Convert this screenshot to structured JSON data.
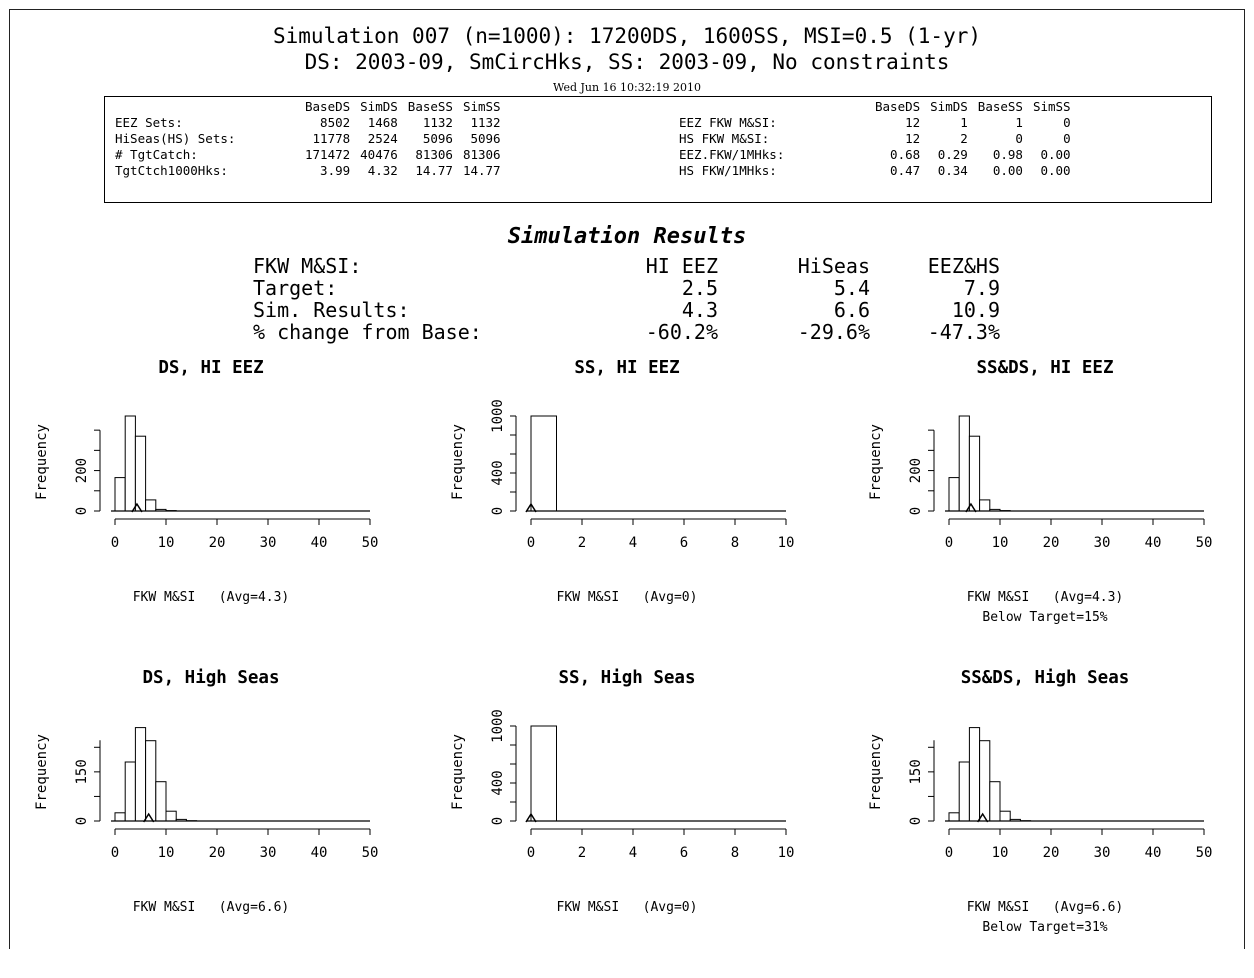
{
  "header": {
    "title": "Simulation 007 (n=1000): 17200DS, 1600SS, MSI=0.5 (1-yr)",
    "subtitle": "DS: 2003-09, SmCircHks,  SS: 2003-09, No constraints",
    "timestamp": "Wed Jun 16 10:32:19 2010"
  },
  "stats_table": {
    "left_columns": [
      "",
      "BaseDS",
      "SimDS",
      "BaseSS",
      "SimSS"
    ],
    "left_rows": [
      [
        "EEZ Sets:",
        "8502",
        "1468",
        "1132",
        "1132"
      ],
      [
        "HiSeas(HS) Sets:",
        "11778",
        "2524",
        "5096",
        "5096"
      ],
      [
        "# TgtCatch:",
        "171472",
        "40476",
        "81306",
        "81306"
      ],
      [
        "TgtCtch1000Hks:",
        "3.99",
        "4.32",
        "14.77",
        "14.77"
      ]
    ],
    "right_columns": [
      "",
      "BaseDS",
      "SimDS",
      "BaseSS",
      "SimSS"
    ],
    "right_rows": [
      [
        "EEZ FKW M&SI:",
        "12",
        "1",
        "1",
        "0"
      ],
      [
        "HS FKW M&SI:",
        "12",
        "2",
        "0",
        "0"
      ],
      [
        "EEZ.FKW/1MHks:",
        "0.68",
        "0.29",
        "0.98",
        "0.00"
      ],
      [
        "HS FKW/1MHks:",
        "0.47",
        "0.34",
        "0.00",
        "0.00"
      ]
    ]
  },
  "results": {
    "heading": "Simulation Results",
    "columns": [
      "HI EEZ",
      "HiSeas",
      "EEZ&HS"
    ],
    "rows": [
      {
        "label": "FKW M&SI:",
        "values": [
          "HI EEZ",
          "HiSeas",
          "EEZ&HS"
        ]
      },
      {
        "label": "Target:",
        "values": [
          "2.5",
          "5.4",
          "7.9"
        ]
      },
      {
        "label": "Sim. Results:",
        "values": [
          "4.3",
          "6.6",
          "10.9"
        ]
      },
      {
        "label": "% change from Base:",
        "values": [
          "-60.2%",
          "-29.6%",
          "-47.3%"
        ]
      }
    ]
  },
  "chart_data": [
    {
      "type": "bar",
      "title": "DS, HI EEZ",
      "xlabel": "FKW M&SI   (Avg=4.3)",
      "ylabel": "Frequency",
      "xlim": [
        0,
        50
      ],
      "xticks": [
        0,
        10,
        20,
        30,
        40,
        50
      ],
      "ylim": [
        0,
        470
      ],
      "yticks": [
        0,
        200
      ],
      "bin_width": 2,
      "counts": [
        165,
        470,
        370,
        55,
        8,
        2
      ],
      "avg": 4.3,
      "below_target": ""
    },
    {
      "type": "bar",
      "title": "SS, HI EEZ",
      "xlabel": "FKW M&SI   (Avg=0)",
      "ylabel": "Frequency",
      "xlim": [
        0,
        10
      ],
      "xticks": [
        0,
        2,
        4,
        6,
        8,
        10
      ],
      "ylim": [
        0,
        1000
      ],
      "yticks": [
        0,
        400,
        1000
      ],
      "bin_width": 1,
      "counts": [
        1000
      ],
      "avg": 0,
      "below_target": ""
    },
    {
      "type": "bar",
      "title": "SS&DS, HI EEZ",
      "xlabel": "FKW M&SI   (Avg=4.3)",
      "ylabel": "Frequency",
      "xlim": [
        0,
        50
      ],
      "xticks": [
        0,
        10,
        20,
        30,
        40,
        50
      ],
      "ylim": [
        0,
        470
      ],
      "yticks": [
        0,
        200
      ],
      "bin_width": 2,
      "counts": [
        165,
        470,
        370,
        55,
        8,
        2
      ],
      "avg": 4.3,
      "below_target": "Below Target=15%"
    },
    {
      "type": "bar",
      "title": "DS, High Seas",
      "xlabel": "FKW M&SI   (Avg=6.6)",
      "ylabel": "Frequency",
      "xlim": [
        0,
        50
      ],
      "xticks": [
        0,
        10,
        20,
        30,
        40,
        50
      ],
      "ylim": [
        0,
        290
      ],
      "yticks": [
        0,
        150
      ],
      "bin_width": 2,
      "counts": [
        25,
        180,
        285,
        245,
        120,
        30,
        5,
        1
      ],
      "avg": 6.6,
      "below_target": ""
    },
    {
      "type": "bar",
      "title": "SS, High Seas",
      "xlabel": "FKW M&SI   (Avg=0)",
      "ylabel": "Frequency",
      "xlim": [
        0,
        10
      ],
      "xticks": [
        0,
        2,
        4,
        6,
        8,
        10
      ],
      "ylim": [
        0,
        1000
      ],
      "yticks": [
        0,
        400,
        1000
      ],
      "bin_width": 1,
      "counts": [
        1000
      ],
      "avg": 0,
      "below_target": ""
    },
    {
      "type": "bar",
      "title": "SS&DS, High Seas",
      "xlabel": "FKW M&SI   (Avg=6.6)",
      "ylabel": "Frequency",
      "xlim": [
        0,
        50
      ],
      "xticks": [
        0,
        10,
        20,
        30,
        40,
        50
      ],
      "ylim": [
        0,
        290
      ],
      "yticks": [
        0,
        150
      ],
      "bin_width": 2,
      "counts": [
        25,
        180,
        285,
        245,
        120,
        30,
        5,
        1
      ],
      "avg": 6.6,
      "below_target": "Below Target=31%"
    }
  ]
}
